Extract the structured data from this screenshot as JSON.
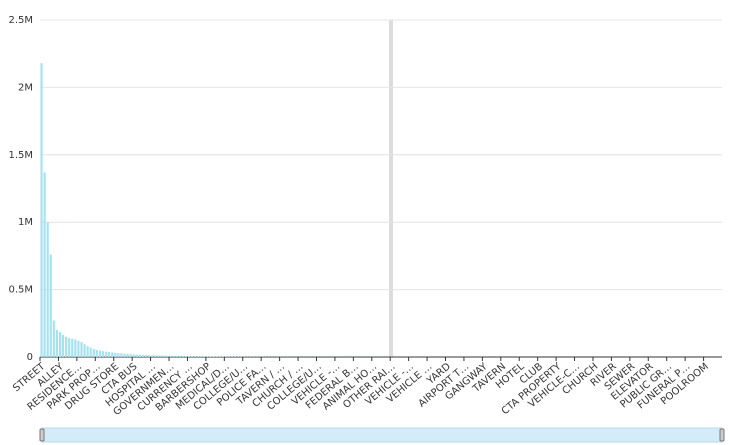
{
  "chart_data": {
    "type": "bar",
    "color": "#a6e1ef",
    "grid": true,
    "ylim": [
      0,
      2500000
    ],
    "yticks": [
      0,
      {
        "value": 500000,
        "label": "0.5M"
      },
      {
        "value": 1000000,
        "label": "1M"
      },
      {
        "value": 1500000,
        "label": "1.5M"
      },
      {
        "value": 2000000,
        "label": "2M"
      },
      {
        "value": 2500000,
        "label": "2.5M"
      }
    ],
    "categories": [
      "STREET",
      null,
      null,
      null,
      null,
      null,
      "ALLEY",
      null,
      null,
      null,
      null,
      null,
      "RESIDENCE…",
      null,
      null,
      null,
      null,
      null,
      "PARK PROP…",
      null,
      null,
      null,
      null,
      null,
      "DRUG STORE",
      null,
      null,
      null,
      null,
      null,
      "CTA BUS",
      null,
      null,
      null,
      null,
      null,
      "HOSPITAL …",
      null,
      null,
      null,
      null,
      null,
      "GOVERNMEN…",
      null,
      null,
      null,
      null,
      null,
      "CURRENCY …",
      null,
      null,
      null,
      null,
      null,
      "BARBERSHOP",
      null,
      null,
      null,
      null,
      null,
      "MEDICAL/D…",
      null,
      null,
      null,
      null,
      null,
      "COLLEGE/U…",
      null,
      null,
      null,
      null,
      null,
      "POLICE FA…",
      null,
      null,
      null,
      null,
      null,
      "TAVERN / …",
      null,
      null,
      null,
      null,
      null,
      "CHURCH / …",
      null,
      null,
      null,
      null,
      null,
      "COLLEGE/U…",
      null,
      null,
      null,
      null,
      null,
      "VEHICLE -…",
      null,
      null,
      null,
      null,
      null,
      "FEDERAL B…",
      null,
      null,
      null,
      null,
      null,
      "ANIMAL HO…",
      null,
      null,
      null,
      null,
      null,
      "OTHER RAI…",
      null,
      null,
      null,
      null,
      null,
      "VEHICLE -…",
      null,
      null,
      null,
      null,
      null,
      "VEHICLE …",
      null,
      null,
      null,
      null,
      null,
      "YARD",
      null,
      null,
      null,
      null,
      null,
      "AIRPORT T…",
      null,
      null,
      null,
      null,
      null,
      "GANGWAY",
      null,
      null,
      null,
      null,
      null,
      "TAVERN",
      null,
      null,
      null,
      null,
      null,
      "HOTEL",
      null,
      null,
      null,
      null,
      null,
      "CLUB",
      null,
      null,
      null,
      null,
      null,
      "CTA PROPERTY",
      null,
      null,
      null,
      null,
      null,
      "VEHICLE-C…",
      null,
      null,
      null,
      null,
      null,
      "CHURCH",
      null,
      null,
      null,
      null,
      null,
      "RIVER",
      null,
      null,
      null,
      null,
      null,
      "SEWER",
      null,
      null,
      null,
      null,
      null,
      "ELEVATOR",
      null,
      null,
      null,
      null,
      null,
      "PUBLIC GR…",
      null,
      null,
      null,
      null,
      null,
      "FUNERAL P…",
      null,
      null,
      null,
      null,
      null,
      "POOLROOM",
      null,
      null,
      null,
      null,
      null
    ],
    "values": [
      2180000,
      1370000,
      1000000,
      760000,
      270000,
      200000,
      185000,
      165000,
      150000,
      140000,
      135000,
      130000,
      120000,
      110000,
      95000,
      80000,
      70000,
      60000,
      52000,
      47000,
      43000,
      40000,
      37000,
      34000,
      31000,
      29000,
      27000,
      25000,
      23000,
      21000,
      19000,
      18000,
      17000,
      16000,
      15000,
      14000,
      13000,
      12000,
      11000,
      10500,
      10000,
      9500,
      9000,
      8500,
      8000,
      7500,
      7000,
      6600,
      6200,
      5800,
      5400,
      5000,
      4700,
      4400,
      4100,
      3900,
      3700,
      3500,
      3300,
      3100,
      2900,
      2800,
      2700,
      2600,
      2500,
      2400,
      2300,
      2200,
      2100,
      2000,
      1900,
      1850,
      1800,
      1750,
      1700,
      1650,
      1600,
      1550,
      1500,
      1450,
      1400,
      1350,
      1300,
      1250,
      1200,
      1150,
      1100,
      1050,
      1000,
      970,
      940,
      910,
      880,
      850,
      820,
      790,
      760,
      730,
      700,
      680,
      660,
      640,
      620,
      600,
      580,
      560,
      540,
      520,
      500,
      480,
      460,
      440,
      420,
      400,
      380,
      360,
      340,
      320,
      300,
      290,
      280,
      270,
      260,
      250,
      240,
      230,
      220,
      210,
      200,
      190,
      180,
      170,
      160,
      150,
      140,
      130,
      120,
      110,
      100,
      95,
      90,
      85,
      80,
      75,
      70,
      65,
      60,
      55,
      50,
      48,
      46,
      44,
      42,
      40,
      38,
      36,
      34,
      32,
      30,
      29,
      28,
      27,
      26,
      25,
      24,
      23,
      22,
      21,
      20,
      19,
      18,
      17,
      16,
      15,
      14,
      13,
      12,
      11,
      10,
      10,
      9,
      9,
      8,
      8,
      7,
      7,
      6,
      6,
      5,
      5,
      5,
      4,
      4,
      4,
      4,
      3,
      3,
      3,
      3,
      2,
      2,
      2,
      2,
      2,
      2,
      2,
      1,
      1,
      1,
      1,
      1,
      1,
      1,
      1,
      1,
      1,
      1,
      1,
      1,
      1,
      1,
      1
    ]
  }
}
